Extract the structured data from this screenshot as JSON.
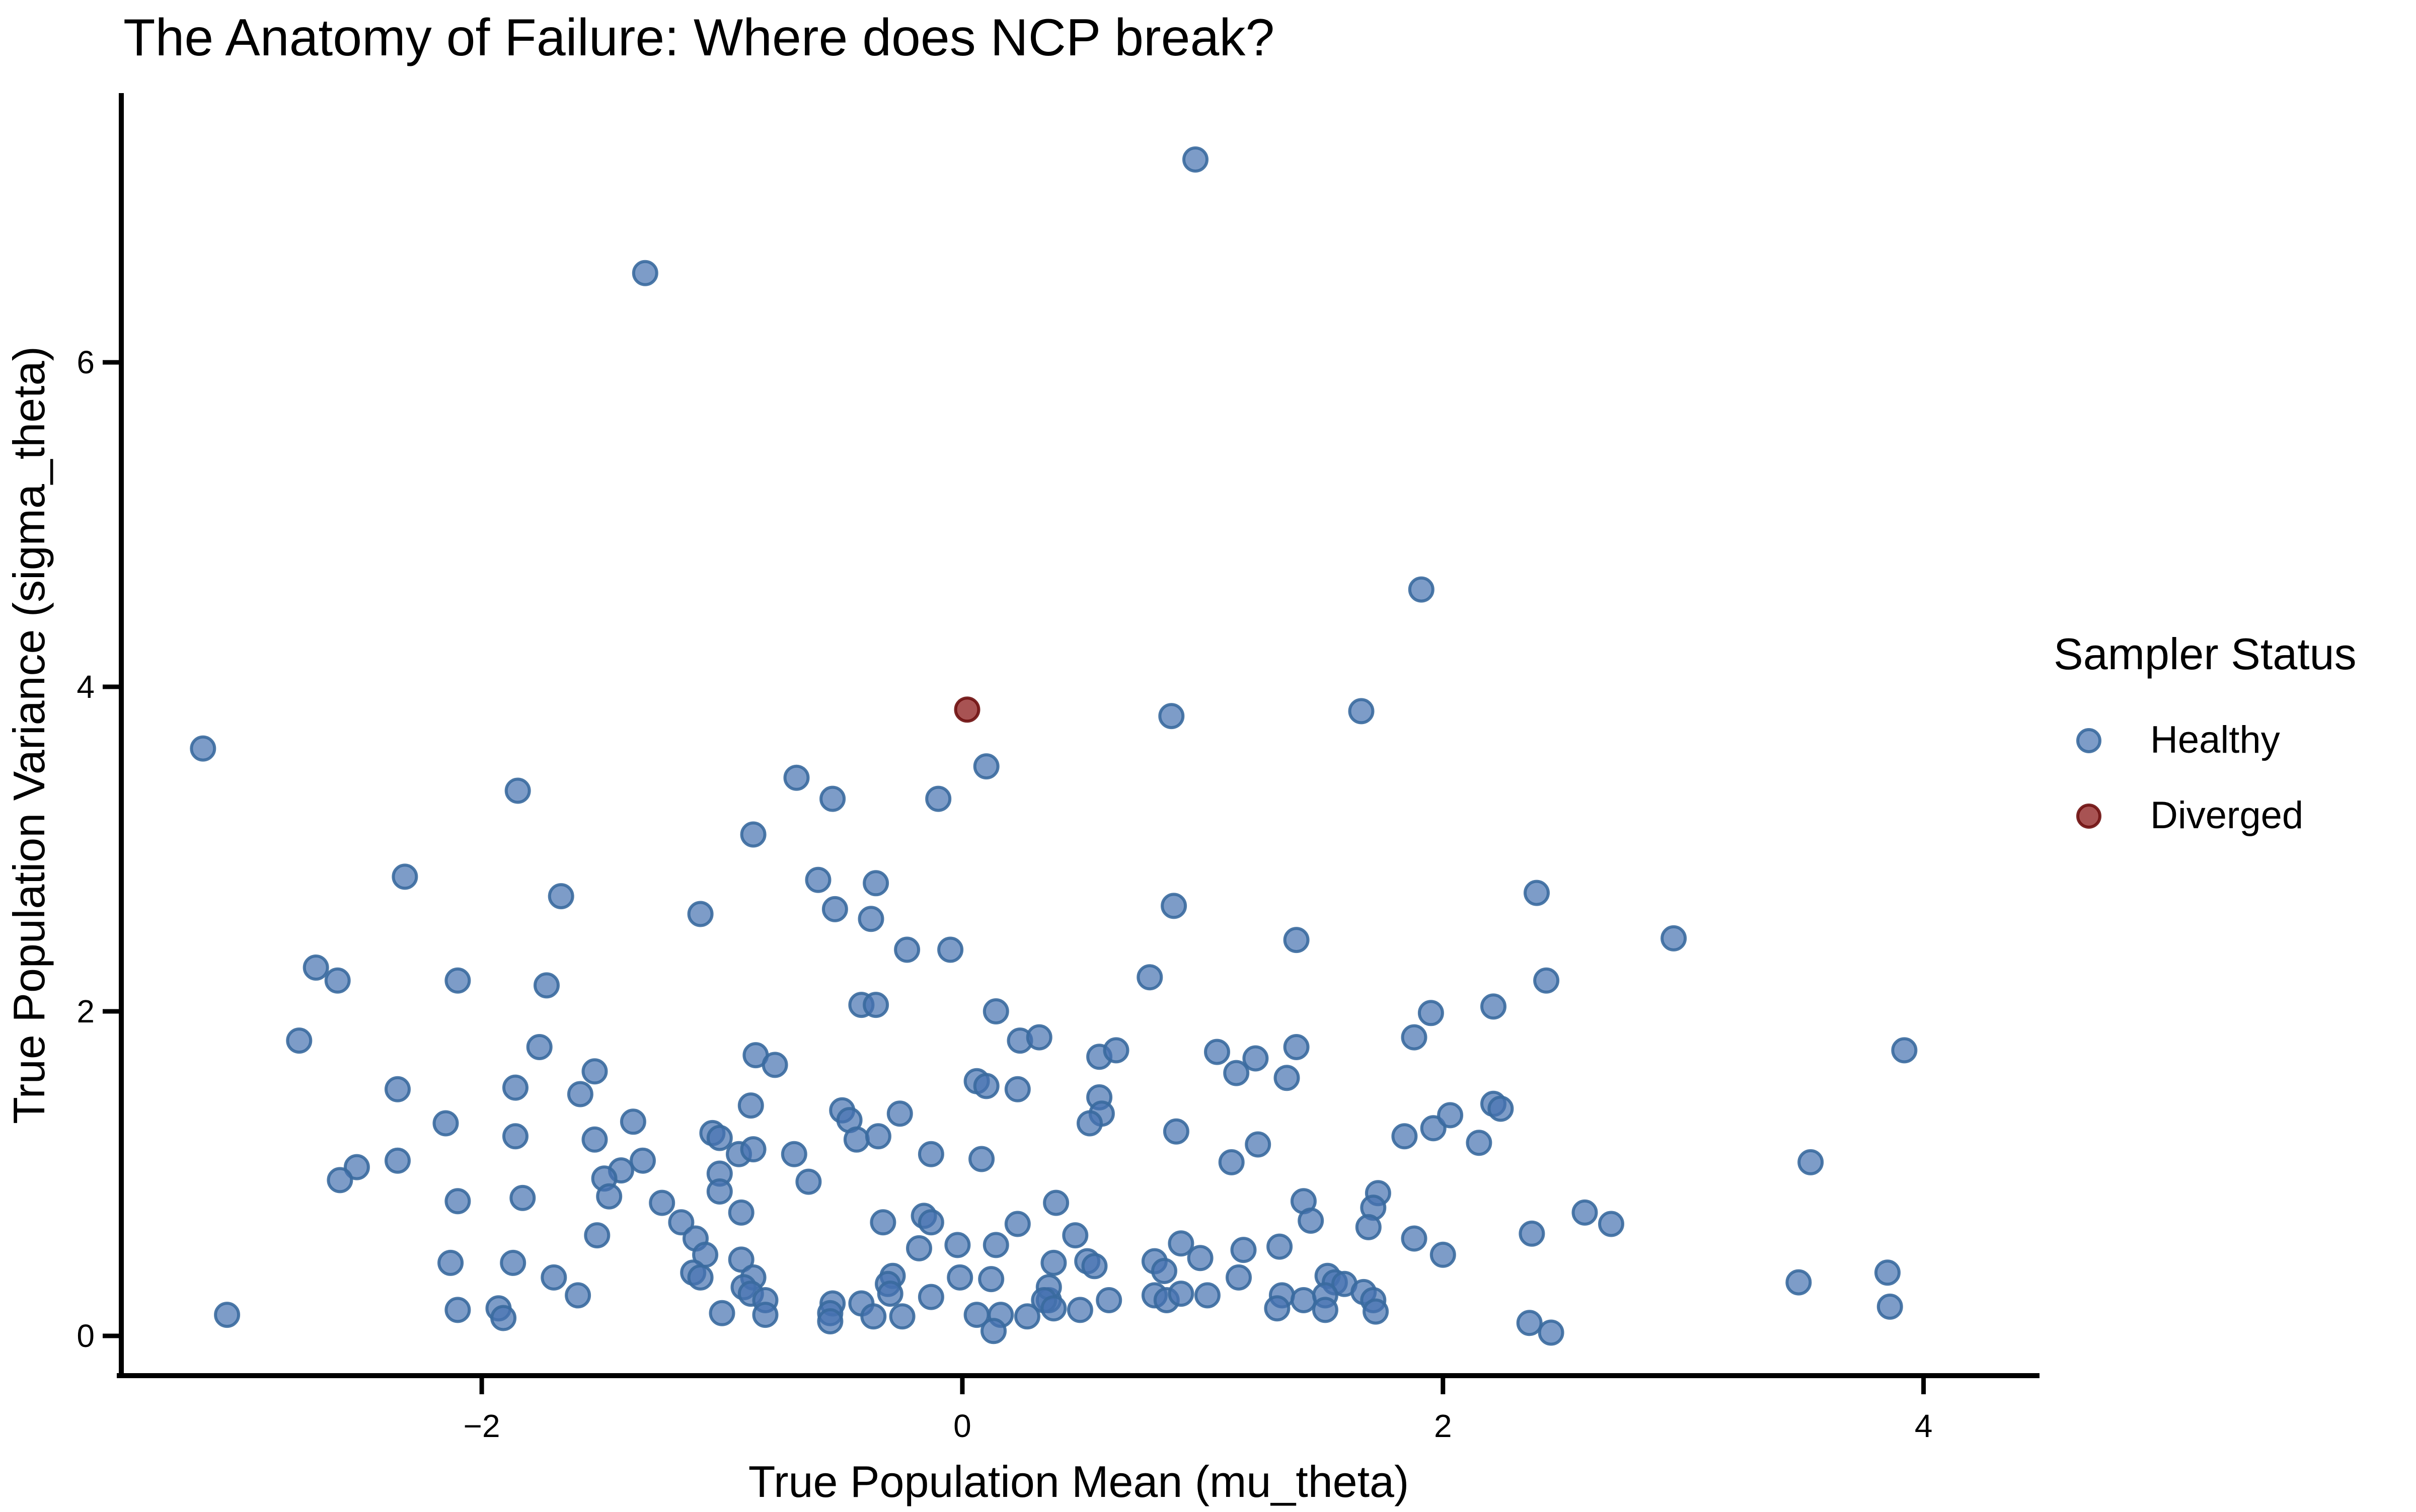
{
  "chart_data": {
    "type": "scatter",
    "title": "The Anatomy of Failure: Where does NCP break?",
    "xlabel": "True Population Mean (mu_theta)",
    "ylabel": "True Population Variance (sigma_theta)",
    "xlim": [
      -3.5,
      4.47
    ],
    "ylim": [
      -0.245,
      7.65
    ],
    "grid": false,
    "x_ticks": [
      {
        "v": -2,
        "label": "−2"
      },
      {
        "v": 0,
        "label": "0"
      },
      {
        "v": 2,
        "label": "2"
      },
      {
        "v": 4,
        "label": "4"
      }
    ],
    "y_ticks": [
      {
        "v": 0,
        "label": "0"
      },
      {
        "v": 2,
        "label": "2"
      },
      {
        "v": 4,
        "label": "4"
      },
      {
        "v": 6,
        "label": "6"
      }
    ],
    "legend": {
      "title": "Sampler Status",
      "position": "right",
      "entries": [
        {
          "label": "Healthy",
          "fill": "#4672b0",
          "fill_opacity": 0.7,
          "stroke": "#3a6a9e",
          "stroke_opacity": 0.9
        },
        {
          "label": "Diverged",
          "fill": "#8b1a1a",
          "fill_opacity": 0.75,
          "stroke": "#6e0f0f",
          "stroke_opacity": 0.9
        }
      ]
    },
    "series": [
      {
        "name": "Healthy",
        "fill": "#4672b0",
        "fill_opacity": 0.7,
        "stroke": "#3a6a9e",
        "stroke_opacity": 0.9,
        "points": [
          [
            -1.32,
            6.55
          ],
          [
            0.97,
            7.25
          ],
          [
            1.91,
            4.6
          ],
          [
            0.87,
            3.82
          ],
          [
            1.66,
            3.85
          ],
          [
            -3.16,
            3.62
          ],
          [
            0.1,
            3.51
          ],
          [
            -0.69,
            3.44
          ],
          [
            -0.54,
            3.31
          ],
          [
            -0.1,
            3.31
          ],
          [
            -1.85,
            3.36
          ],
          [
            -0.87,
            3.09
          ],
          [
            -0.6,
            2.81
          ],
          [
            -0.36,
            2.79
          ],
          [
            -2.32,
            2.83
          ],
          [
            -1.67,
            2.71
          ],
          [
            -1.09,
            2.6
          ],
          [
            -0.53,
            2.63
          ],
          [
            -0.38,
            2.57
          ],
          [
            0.88,
            2.65
          ],
          [
            2.39,
            2.73
          ],
          [
            -0.23,
            2.38
          ],
          [
            -0.05,
            2.38
          ],
          [
            1.39,
            2.44
          ],
          [
            2.96,
            2.45
          ],
          [
            -2.69,
            2.27
          ],
          [
            -2.6,
            2.19
          ],
          [
            -2.1,
            2.19
          ],
          [
            -1.73,
            2.16
          ],
          [
            0.78,
            2.21
          ],
          [
            2.43,
            2.19
          ],
          [
            2.21,
            2.03
          ],
          [
            1.95,
            1.99
          ],
          [
            0.14,
            2.0
          ],
          [
            -0.42,
            2.04
          ],
          [
            -0.36,
            2.04
          ],
          [
            -2.76,
            1.82
          ],
          [
            -1.76,
            1.78
          ],
          [
            -2.35,
            1.52
          ],
          [
            -1.86,
            1.53
          ],
          [
            -1.53,
            1.63
          ],
          [
            -1.59,
            1.49
          ],
          [
            -2.15,
            1.31
          ],
          [
            -1.86,
            1.23
          ],
          [
            -1.53,
            1.21
          ],
          [
            -2.52,
            1.04
          ],
          [
            -2.59,
            0.96
          ],
          [
            -2.35,
            1.08
          ],
          [
            -2.1,
            0.83
          ],
          [
            -1.83,
            0.85
          ],
          [
            -2.13,
            0.45
          ],
          [
            -1.87,
            0.45
          ],
          [
            -1.7,
            0.36
          ],
          [
            -1.6,
            0.25
          ],
          [
            -1.93,
            0.17
          ],
          [
            -1.91,
            0.11
          ],
          [
            -2.1,
            0.16
          ],
          [
            -3.06,
            0.13
          ],
          [
            -0.86,
            1.73
          ],
          [
            -0.78,
            1.67
          ],
          [
            -0.88,
            1.42
          ],
          [
            -1.37,
            1.32
          ],
          [
            -1.04,
            1.25
          ],
          [
            -1.01,
            1.22
          ],
          [
            -0.5,
            1.39
          ],
          [
            -0.47,
            1.33
          ],
          [
            -0.26,
            1.37
          ],
          [
            -0.44,
            1.21
          ],
          [
            -0.35,
            1.23
          ],
          [
            -0.93,
            1.12
          ],
          [
            -0.87,
            1.15
          ],
          [
            -0.7,
            1.12
          ],
          [
            -0.13,
            1.12
          ],
          [
            0.08,
            1.09
          ],
          [
            -1.33,
            1.08
          ],
          [
            -1.42,
            1.02
          ],
          [
            -1.49,
            0.97
          ],
          [
            -1.47,
            0.86
          ],
          [
            -1.01,
            1.0
          ],
          [
            -1.01,
            0.89
          ],
          [
            -1.25,
            0.82
          ],
          [
            -0.92,
            0.76
          ],
          [
            -0.64,
            0.95
          ],
          [
            -0.33,
            0.7
          ],
          [
            -0.16,
            0.74
          ],
          [
            -0.13,
            0.7
          ],
          [
            0.23,
            0.69
          ],
          [
            0.39,
            0.82
          ],
          [
            -1.17,
            0.7
          ],
          [
            -1.52,
            0.62
          ],
          [
            -1.11,
            0.6
          ],
          [
            -1.07,
            0.5
          ],
          [
            -0.18,
            0.54
          ],
          [
            -0.02,
            0.56
          ],
          [
            0.14,
            0.56
          ],
          [
            -0.01,
            0.36
          ],
          [
            0.12,
            0.35
          ],
          [
            0.38,
            0.45
          ],
          [
            -1.12,
            0.39
          ],
          [
            -1.09,
            0.36
          ],
          [
            -0.92,
            0.47
          ],
          [
            -0.87,
            0.36
          ],
          [
            -0.91,
            0.3
          ],
          [
            -0.88,
            0.26
          ],
          [
            -0.82,
            0.22
          ],
          [
            -0.82,
            0.13
          ],
          [
            -1.0,
            0.14
          ],
          [
            -0.54,
            0.2
          ],
          [
            -0.55,
            0.14
          ],
          [
            -0.55,
            0.09
          ],
          [
            -0.42,
            0.2
          ],
          [
            -0.37,
            0.12
          ],
          [
            -0.25,
            0.12
          ],
          [
            -0.29,
            0.37
          ],
          [
            -0.31,
            0.32
          ],
          [
            -0.3,
            0.26
          ],
          [
            -0.13,
            0.24
          ],
          [
            0.06,
            0.13
          ],
          [
            0.16,
            0.13
          ],
          [
            0.13,
            0.03
          ],
          [
            0.27,
            0.12
          ],
          [
            0.36,
            0.22
          ],
          [
            0.24,
            1.82
          ],
          [
            0.32,
            1.84
          ],
          [
            0.06,
            1.57
          ],
          [
            0.1,
            1.54
          ],
          [
            0.23,
            1.52
          ],
          [
            0.57,
            1.72
          ],
          [
            0.64,
            1.76
          ],
          [
            1.06,
            1.75
          ],
          [
            1.22,
            1.71
          ],
          [
            1.14,
            1.62
          ],
          [
            1.39,
            1.78
          ],
          [
            1.35,
            1.59
          ],
          [
            1.88,
            1.84
          ],
          [
            0.57,
            1.47
          ],
          [
            0.58,
            1.37
          ],
          [
            0.53,
            1.31
          ],
          [
            0.89,
            1.26
          ],
          [
            1.23,
            1.18
          ],
          [
            1.12,
            1.07
          ],
          [
            1.84,
            1.23
          ],
          [
            1.96,
            1.28
          ],
          [
            2.03,
            1.36
          ],
          [
            2.21,
            1.43
          ],
          [
            2.24,
            1.4
          ],
          [
            2.15,
            1.19
          ],
          [
            1.42,
            0.83
          ],
          [
            1.45,
            0.71
          ],
          [
            1.73,
            0.88
          ],
          [
            1.71,
            0.79
          ],
          [
            1.69,
            0.67
          ],
          [
            1.88,
            0.6
          ],
          [
            2.0,
            0.5
          ],
          [
            2.37,
            0.63
          ],
          [
            0.47,
            0.62
          ],
          [
            0.52,
            0.46
          ],
          [
            0.55,
            0.43
          ],
          [
            0.91,
            0.57
          ],
          [
            0.99,
            0.48
          ],
          [
            0.8,
            0.46
          ],
          [
            0.84,
            0.4
          ],
          [
            0.8,
            0.25
          ],
          [
            0.85,
            0.22
          ],
          [
            0.91,
            0.26
          ],
          [
            1.02,
            0.25
          ],
          [
            1.17,
            0.53
          ],
          [
            1.15,
            0.36
          ],
          [
            1.32,
            0.55
          ],
          [
            1.33,
            0.25
          ],
          [
            1.31,
            0.17
          ],
          [
            1.42,
            0.22
          ],
          [
            1.52,
            0.37
          ],
          [
            1.55,
            0.33
          ],
          [
            1.59,
            0.32
          ],
          [
            1.51,
            0.25
          ],
          [
            1.51,
            0.16
          ],
          [
            1.67,
            0.27
          ],
          [
            1.71,
            0.22
          ],
          [
            1.72,
            0.15
          ],
          [
            2.36,
            0.08
          ],
          [
            2.45,
            0.02
          ],
          [
            0.49,
            0.16
          ],
          [
            0.61,
            0.22
          ],
          [
            0.36,
            0.3
          ],
          [
            0.34,
            0.22
          ],
          [
            0.38,
            0.17
          ],
          [
            3.92,
            1.76
          ],
          [
            3.53,
            1.07
          ],
          [
            2.59,
            0.76
          ],
          [
            2.7,
            0.69
          ],
          [
            3.48,
            0.33
          ],
          [
            3.85,
            0.39
          ],
          [
            3.86,
            0.18
          ]
        ]
      },
      {
        "name": "Diverged",
        "fill": "#8b1a1a",
        "fill_opacity": 0.75,
        "stroke": "#6e0f0f",
        "stroke_opacity": 0.9,
        "points": [
          [
            0.02,
            3.86
          ]
        ]
      }
    ]
  }
}
